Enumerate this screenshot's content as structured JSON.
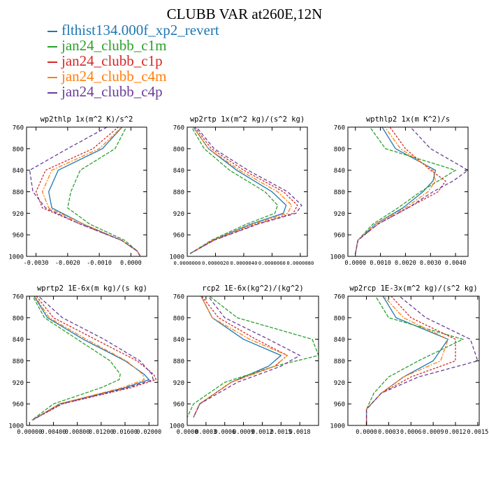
{
  "title": "CLUBB VAR at260E,12N",
  "legend": [
    {
      "name": "flthist134.000f_xp2_revert",
      "color": "#1f77b4"
    },
    {
      "name": "jan24_clubb_c1m",
      "color": "#2ca02c"
    },
    {
      "name": "jan24_clubb_c1p",
      "color": "#d62728"
    },
    {
      "name": "jan24_clubb_c4m",
      "color": "#ff7f0e"
    },
    {
      "name": "jan24_clubb_c4p",
      "color": "#6a3d9a"
    }
  ],
  "chart_data": [
    {
      "type": "line",
      "title": "wp2thlp  1x(m^2 K)/s^2",
      "xlim": [
        -0.0033,
        0.0005
      ],
      "ylim": [
        760,
        1000
      ],
      "xticks": [
        -0.003,
        -0.002,
        -0.001,
        0.0
      ],
      "xticklabels": [
        "-0.0030",
        "-0.0020",
        "-0.0010",
        "0.0000"
      ],
      "y": [
        755,
        800,
        840,
        880,
        910,
        940,
        970,
        990,
        1000
      ],
      "series": [
        {
          "name": "flthist134.000f_xp2_revert",
          "values": [
            -0.0002,
            -0.0009,
            -0.0023,
            -0.0026,
            -0.0025,
            -0.0015,
            -0.0003,
            0.0002,
            0.0003
          ]
        },
        {
          "name": "jan24_clubb_c1m",
          "values": [
            -0.0001,
            -0.0005,
            -0.0016,
            -0.0019,
            -0.002,
            -0.0013,
            -0.0002,
            0.0002,
            0.0003
          ]
        },
        {
          "name": "jan24_clubb_c1p",
          "values": [
            -0.0003,
            -0.0012,
            -0.0027,
            -0.003,
            -0.0028,
            -0.0016,
            -0.0003,
            0.0002,
            0.0003
          ]
        },
        {
          "name": "jan24_clubb_c4m",
          "values": [
            -0.0002,
            -0.001,
            -0.0025,
            -0.0028,
            -0.0026,
            -0.0015,
            -0.0003,
            0.0002,
            0.0003
          ]
        },
        {
          "name": "jan24_clubb_c4p",
          "values": [
            -0.0006,
            -0.002,
            -0.0032,
            -0.0031,
            -0.0027,
            -0.0016,
            -0.0003,
            0.0002,
            0.0003
          ]
        }
      ]
    },
    {
      "type": "line",
      "title": "wp2rtp  1x(m^2 kg)/(s^2 kg)",
      "xlim": [
        0.0,
        8.5e-06
      ],
      "ylim": [
        760,
        1000
      ],
      "xticks": [
        0.0,
        2e-06,
        4e-06,
        6e-06,
        8e-06
      ],
      "xticklabels": [
        "0.0000000",
        "0.0000020",
        "0.0000040",
        "0.0000060",
        "0.0000080"
      ],
      "y": [
        755,
        800,
        840,
        880,
        905,
        920,
        940,
        970,
        995
      ],
      "series": [
        {
          "name": "flthist134.000f_xp2_revert",
          "values": [
            3e-07,
            1.5e-06,
            3.5e-06,
            6e-06,
            7e-06,
            6.8e-06,
            4.5e-06,
            1.8e-06,
            2e-07
          ]
        },
        {
          "name": "jan24_clubb_c1m",
          "values": [
            2e-07,
            1.2e-06,
            3e-06,
            5.5e-06,
            6.4e-06,
            6.2e-06,
            4.2e-06,
            1.7e-06,
            2e-07
          ]
        },
        {
          "name": "jan24_clubb_c1p",
          "values": [
            4e-07,
            1.7e-06,
            4e-06,
            6.8e-06,
            7.8e-06,
            7.5e-06,
            4.9e-06,
            1.9e-06,
            2e-07
          ]
        },
        {
          "name": "jan24_clubb_c4m",
          "values": [
            3e-07,
            1.5e-06,
            3.7e-06,
            6.4e-06,
            7.4e-06,
            7.1e-06,
            4.7e-06,
            1.8e-06,
            2e-07
          ]
        },
        {
          "name": "jan24_clubb_c4p",
          "values": [
            5e-07,
            1.9e-06,
            4.3e-06,
            7.1e-06,
            8.1e-06,
            7.7e-06,
            5e-06,
            1.9e-06,
            2e-07
          ]
        }
      ]
    },
    {
      "type": "line",
      "title": "wpthlp2  1x(m K^2)/s",
      "xlim": [
        -0.0003,
        0.0045
      ],
      "ylim": [
        760,
        1000
      ],
      "xticks": [
        0.0,
        0.001,
        0.002,
        0.003,
        0.004
      ],
      "xticklabels": [
        "0.0000",
        "0.0010",
        "0.0020",
        "0.0030",
        "0.0040"
      ],
      "y": [
        755,
        800,
        840,
        860,
        880,
        910,
        940,
        970,
        995
      ],
      "series": [
        {
          "name": "flthist134.000f_xp2_revert",
          "values": [
            0.001,
            0.0016,
            0.0032,
            0.0031,
            0.0027,
            0.0019,
            0.0008,
            0.0001,
            0.0
          ]
        },
        {
          "name": "jan24_clubb_c1m",
          "values": [
            0.0005,
            0.0012,
            0.004,
            0.0033,
            0.0026,
            0.0017,
            0.0007,
            0.0001,
            0.0
          ]
        },
        {
          "name": "jan24_clubb_c1p",
          "values": [
            0.0013,
            0.002,
            0.003,
            0.0036,
            0.0033,
            0.0021,
            0.0009,
            0.0001,
            0.0
          ]
        },
        {
          "name": "jan24_clubb_c4m",
          "values": [
            0.0011,
            0.0018,
            0.0031,
            0.0032,
            0.0029,
            0.002,
            0.0008,
            0.0001,
            0.0
          ]
        },
        {
          "name": "jan24_clubb_c4p",
          "values": [
            0.0021,
            0.003,
            0.0045,
            0.0039,
            0.0031,
            0.0021,
            0.0009,
            0.0001,
            0.0
          ]
        }
      ]
    },
    {
      "type": "line",
      "title": "wprtp2  1E-6x(m kg)/(s kg)",
      "xlim": [
        -0.0005,
        0.0215
      ],
      "ylim": [
        760,
        1000
      ],
      "xticks": [
        0.0,
        0.004,
        0.008,
        0.012,
        0.016,
        0.02
      ],
      "xticklabels": [
        "0.00000",
        "0.00400",
        "0.00800",
        "0.01200",
        "0.01600",
        "0.02000"
      ],
      "y": [
        755,
        800,
        840,
        880,
        905,
        915,
        930,
        960,
        990
      ],
      "series": [
        {
          "name": "flthist134.000f_xp2_revert",
          "values": [
            0.0005,
            0.003,
            0.009,
            0.016,
            0.0192,
            0.02,
            0.016,
            0.005,
            0.0005
          ]
        },
        {
          "name": "jan24_clubb_c1m",
          "values": [
            0.0003,
            0.0025,
            0.008,
            0.0135,
            0.0152,
            0.015,
            0.012,
            0.004,
            0.0004
          ]
        },
        {
          "name": "jan24_clubb_c1p",
          "values": [
            0.0008,
            0.004,
            0.011,
            0.018,
            0.0208,
            0.0212,
            0.017,
            0.0055,
            0.0005
          ]
        },
        {
          "name": "jan24_clubb_c4m",
          "values": [
            0.0006,
            0.0033,
            0.0095,
            0.0162,
            0.019,
            0.0192,
            0.0155,
            0.005,
            0.0005
          ]
        },
        {
          "name": "jan24_clubb_c4p",
          "values": [
            0.001,
            0.0055,
            0.0125,
            0.0185,
            0.0205,
            0.0207,
            0.0165,
            0.0053,
            0.0005
          ]
        }
      ]
    },
    {
      "type": "line",
      "title": "rcp2  1E-6x(kg^2)/(kg^2)",
      "xlim": [
        0.0,
        0.0021
      ],
      "ylim": [
        760,
        1000
      ],
      "xticks": [
        0.0,
        0.0003,
        0.0006,
        0.0009,
        0.0012,
        0.0015,
        0.0018
      ],
      "xticklabels": [
        "0.0000",
        "0.0003",
        "0.0006",
        "0.0009",
        "0.0012",
        "0.0015",
        "0.0018"
      ],
      "y": [
        755,
        800,
        840,
        870,
        890,
        920,
        960,
        985
      ],
      "series": [
        {
          "name": "flthist134.000f_xp2_revert",
          "values": [
            0.0002,
            0.0004,
            0.0009,
            0.0015,
            0.0013,
            0.0007,
            0.0002,
            0.0001
          ]
        },
        {
          "name": "jan24_clubb_c1m",
          "values": [
            0.0003,
            0.0008,
            0.002,
            0.0021,
            0.0014,
            0.0006,
            0.0001,
            0.0
          ]
        },
        {
          "name": "jan24_clubb_c1p",
          "values": [
            0.0002,
            0.0005,
            0.0011,
            0.0016,
            0.0014,
            0.0007,
            0.0002,
            0.0001
          ]
        },
        {
          "name": "jan24_clubb_c4m",
          "values": [
            0.0002,
            0.0004,
            0.001,
            0.0016,
            0.0014,
            0.0007,
            0.0002,
            0.0001
          ]
        },
        {
          "name": "jan24_clubb_c4p",
          "values": [
            0.0003,
            0.0006,
            0.0013,
            0.0018,
            0.0015,
            0.0008,
            0.0002,
            0.0001
          ]
        }
      ]
    },
    {
      "type": "line",
      "title": "wp2rcp  1E-3x(m^2 kg)/(s^2 kg)",
      "xlim": [
        -0.00025,
        0.00152
      ],
      "ylim": [
        760,
        1000
      ],
      "xticks": [
        0.0,
        0.0003,
        0.0006,
        0.0009,
        0.0012,
        0.0015
      ],
      "xticklabels": [
        "0.0000",
        "0.0003",
        "0.0006",
        "0.0009",
        "0.0012",
        "0.0015"
      ],
      "y": [
        755,
        800,
        840,
        880,
        910,
        940,
        970,
        1000
      ],
      "series": [
        {
          "name": "flthist134.000f_xp2_revert",
          "values": [
            0.0002,
            0.0004,
            0.0011,
            0.0009,
            0.0005,
            0.0002,
            0.0,
            0.0
          ]
        },
        {
          "name": "jan24_clubb_c1m",
          "values": [
            0.0001,
            0.0003,
            0.0013,
            0.0007,
            0.0003,
            0.0001,
            0.0,
            0.0
          ]
        },
        {
          "name": "jan24_clubb_c1p",
          "values": [
            0.0003,
            0.0006,
            0.0012,
            0.0012,
            0.0006,
            0.0002,
            0.0,
            0.0
          ]
        },
        {
          "name": "jan24_clubb_c4m",
          "values": [
            0.0002,
            0.0005,
            0.0011,
            0.001,
            0.0005,
            0.0002,
            0.0,
            0.0
          ]
        },
        {
          "name": "jan24_clubb_c4p",
          "values": [
            0.0004,
            0.0008,
            0.0014,
            0.0015,
            0.0007,
            0.0002,
            0.0,
            0.0
          ]
        }
      ]
    }
  ],
  "yticks": [
    760,
    800,
    840,
    880,
    920,
    960,
    1000
  ]
}
